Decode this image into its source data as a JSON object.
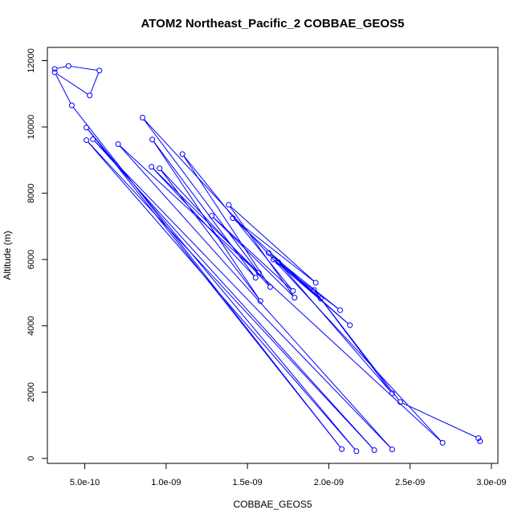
{
  "chart_data": {
    "type": "scatter",
    "title": "ATOM2 Northeast_Pacific_2 COBBAE_GEOS5",
    "xlabel": "COBBAE_GEOS5",
    "ylabel": "Altitude (m)",
    "xlim": [
      2.7e-10,
      3.04e-09
    ],
    "ylim": [
      -150,
      12400
    ],
    "x_ticks": [
      5e-10,
      1e-09,
      1.5e-09,
      2e-09,
      2.5e-09,
      3e-09
    ],
    "x_tick_labels": [
      "5.0e-10",
      "1.0e-09",
      "1.5e-09",
      "2.0e-09",
      "2.5e-09",
      "3.0e-09"
    ],
    "y_ticks": [
      0,
      2000,
      4000,
      6000,
      8000,
      10000,
      12000
    ],
    "y_tick_labels": [
      "0",
      "2000",
      "4000",
      "6000",
      "8000",
      "10000",
      "12000"
    ],
    "grid": false,
    "colors": {
      "series": "#0000ff",
      "frame": "#000000"
    },
    "series": [
      {
        "marker": "open-circle",
        "line": true,
        "x": [
          3.15e-10,
          4e-10,
          5.9e-10,
          5.3e-10,
          3.15e-10,
          4.2e-10,
          2.08e-09,
          5.1e-10,
          2.17e-09,
          5.1e-10,
          2.28e-09,
          5.5e-10,
          2.39e-09,
          7.05e-10,
          2.7e-09,
          8.55e-10,
          1.57e-09,
          9.1e-10,
          1.55e-09,
          9.15e-10,
          1.58e-09,
          9.6e-10,
          1.64e-09,
          1.1e-09,
          1.78e-09,
          1.28e-09,
          1.79e-09,
          1.385e-09,
          1.92e-09,
          1.41e-09,
          1.95e-09,
          1.63e-09,
          2.07e-09,
          1.66e-09,
          2.13e-09,
          1.69e-09,
          2.39e-09,
          1.91e-09,
          2.44e-09,
          2.92e-09,
          2.93e-09
        ],
        "y": [
          11750,
          11840,
          11700,
          10950,
          11650,
          10650,
          280,
          9980,
          220,
          9600,
          250,
          9630,
          270,
          9480,
          470,
          10280,
          5600,
          8800,
          5450,
          9620,
          4750,
          8750,
          5170,
          9180,
          5050,
          7320,
          4850,
          7650,
          5300,
          7250,
          4820,
          6200,
          4470,
          6000,
          4020,
          5920,
          1960,
          5080,
          1700,
          610,
          520
        ]
      }
    ]
  }
}
